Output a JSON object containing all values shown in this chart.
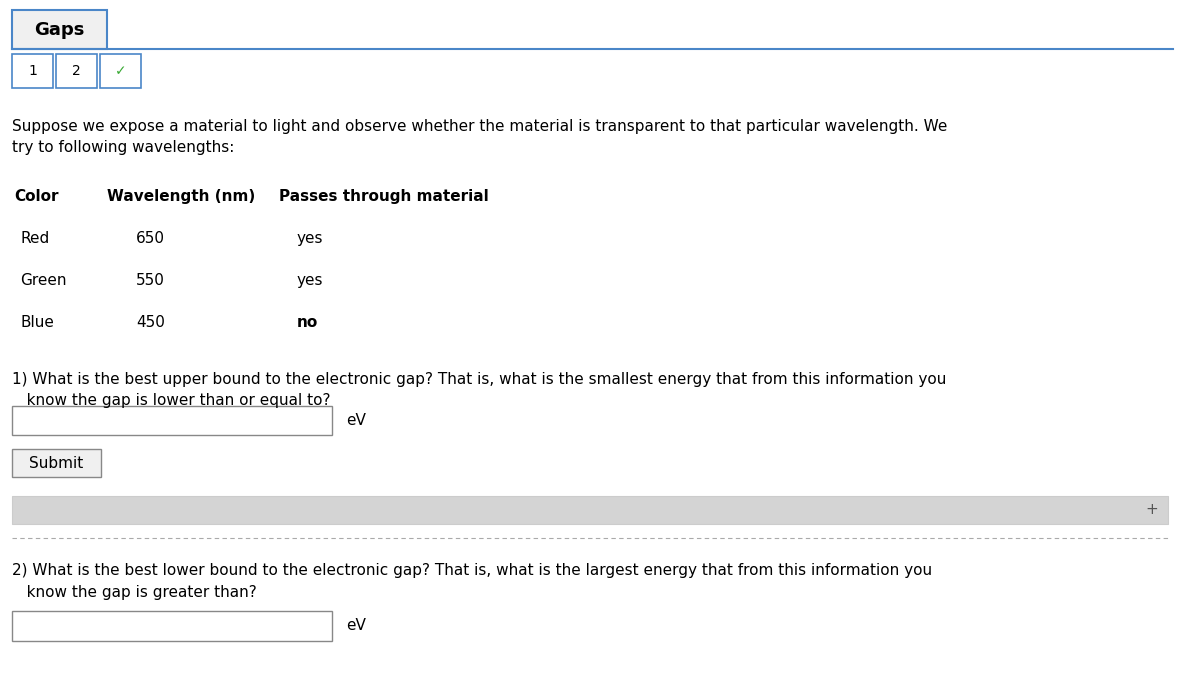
{
  "title": "Gaps",
  "bg_color": "#ffffff",
  "tab_labels": [
    "1",
    "2",
    "✓"
  ],
  "tab_border_color": "#4a86c8",
  "intro_text": "Suppose we expose a material to light and observe whether the material is transparent to that particular wavelength. We\ntry to following wavelengths:",
  "table_header": [
    "Color",
    "Wavelength (nm)",
    "Passes through material"
  ],
  "table_rows": [
    [
      "Red",
      "650",
      "yes"
    ],
    [
      "Green",
      "550",
      "yes"
    ],
    [
      "Blue",
      "450",
      "no"
    ]
  ],
  "q1_text": "1) What is the best upper bound to the electronic gap? That is, what is the smallest energy that from this information you\n   know the gap is lower than or equal to?",
  "q1_unit": "eV",
  "submit_label": "Submit",
  "expand_bar_color": "#d4d4d4",
  "divider_color": "#aaaaaa",
  "q2_text": "2) What is the best lower bound to the electronic gap? That is, what is the largest energy that from this information you\n   know the gap is greater than?",
  "q2_unit": "eV",
  "font_size_title": 13,
  "font_size_body": 11,
  "font_size_table": 11
}
